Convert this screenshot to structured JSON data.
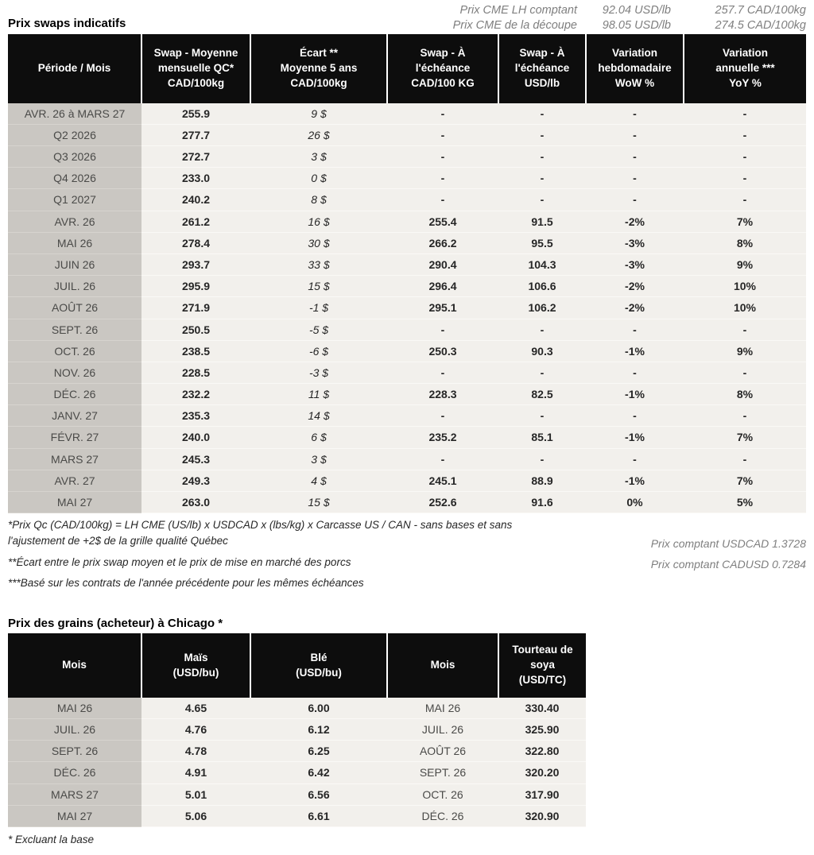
{
  "colors": {
    "positive_green": "#1c7a1c",
    "negative_red": "#9e1b1b",
    "header_bg": "#0d0d0d",
    "month_column_bg": "#cac7c2",
    "data_cell_bg": "#f2f0ec"
  },
  "header": {
    "title": "Prix swaps indicatifs",
    "cme_lines": [
      {
        "label": "Prix CME LH comptant",
        "usd": "92.04 USD/lb",
        "cad": "257.7 CAD/100kg"
      },
      {
        "label": "Prix CME de la découpe",
        "usd": "98.05 USD/lb",
        "cad": "274.5 CAD/100kg"
      }
    ]
  },
  "swaps_table": {
    "columns": [
      "Période / Mois",
      "Swap - Moyenne\nmensuelle QC*\nCAD/100kg",
      "Écart **\nMoyenne 5 ans\nCAD/100kg",
      "Swap - À\nl'échéance\nCAD/100 KG",
      "Swap - À\nl'échéance\nUSD/lb",
      "Variation\nhebdomadaire\nWoW %",
      "Variation\nannuelle ***\nYoY %"
    ],
    "rows": [
      {
        "period": "AVR. 26 à MARS 27",
        "avg": "255.9",
        "ecart": "9 $",
        "ecart_color": "green",
        "swap_cad": "-",
        "swap_usd": "-",
        "wow": "-",
        "yoy": "-"
      },
      {
        "period": "Q2 2026",
        "avg": "277.7",
        "ecart": "26 $",
        "ecart_color": "green",
        "swap_cad": "-",
        "swap_usd": "-",
        "wow": "-",
        "yoy": "-"
      },
      {
        "period": "Q3 2026",
        "avg": "272.7",
        "ecart": "3 $",
        "ecart_color": "green",
        "swap_cad": "-",
        "swap_usd": "-",
        "wow": "-",
        "yoy": "-"
      },
      {
        "period": "Q4 2026",
        "avg": "233.0",
        "ecart": "0 $",
        "ecart_color": "green",
        "swap_cad": "-",
        "swap_usd": "-",
        "wow": "-",
        "yoy": "-"
      },
      {
        "period": "Q1 2027",
        "avg": "240.2",
        "ecart": "8 $",
        "ecart_color": "green",
        "swap_cad": "-",
        "swap_usd": "-",
        "wow": "-",
        "yoy": "-"
      },
      {
        "period": "AVR. 26",
        "avg": "261.2",
        "ecart": "16 $",
        "ecart_color": "green",
        "swap_cad": "255.4",
        "swap_usd": "91.5",
        "wow": "-2%",
        "yoy": "7%"
      },
      {
        "period": "MAI 26",
        "avg": "278.4",
        "ecart": "30 $",
        "ecart_color": "green",
        "swap_cad": "266.2",
        "swap_usd": "95.5",
        "wow": "-3%",
        "yoy": "8%"
      },
      {
        "period": "JUIN 26",
        "avg": "293.7",
        "ecart": "33 $",
        "ecart_color": "green",
        "swap_cad": "290.4",
        "swap_usd": "104.3",
        "wow": "-3%",
        "yoy": "9%"
      },
      {
        "period": "JUIL. 26",
        "avg": "295.9",
        "ecart": "15 $",
        "ecart_color": "green",
        "swap_cad": "296.4",
        "swap_usd": "106.6",
        "wow": "-2%",
        "yoy": "10%"
      },
      {
        "period": "AOÛT 26",
        "avg": "271.9",
        "ecart": "-1 $",
        "ecart_color": "red",
        "swap_cad": "295.1",
        "swap_usd": "106.2",
        "wow": "-2%",
        "yoy": "10%"
      },
      {
        "period": "SEPT. 26",
        "avg": "250.5",
        "ecart": "-5 $",
        "ecart_color": "red",
        "swap_cad": "-",
        "swap_usd": "-",
        "wow": "-",
        "yoy": "-"
      },
      {
        "period": "OCT. 26",
        "avg": "238.5",
        "ecart": "-6 $",
        "ecart_color": "red",
        "swap_cad": "250.3",
        "swap_usd": "90.3",
        "wow": "-1%",
        "yoy": "9%"
      },
      {
        "period": "NOV. 26",
        "avg": "228.5",
        "ecart": "-3 $",
        "ecart_color": "red",
        "swap_cad": "-",
        "swap_usd": "-",
        "wow": "-",
        "yoy": "-"
      },
      {
        "period": "DÉC. 26",
        "avg": "232.2",
        "ecart": "11 $",
        "ecart_color": "green",
        "swap_cad": "228.3",
        "swap_usd": "82.5",
        "wow": "-1%",
        "yoy": "8%"
      },
      {
        "period": "JANV. 27",
        "avg": "235.3",
        "ecart": "14 $",
        "ecart_color": "green",
        "swap_cad": "-",
        "swap_usd": "-",
        "wow": "-",
        "yoy": "-"
      },
      {
        "period": "FÉVR. 27",
        "avg": "240.0",
        "ecart": "6 $",
        "ecart_color": "green",
        "swap_cad": "235.2",
        "swap_usd": "85.1",
        "wow": "-1%",
        "yoy": "7%"
      },
      {
        "period": "MARS 27",
        "avg": "245.3",
        "ecart": "3 $",
        "ecart_color": "green",
        "swap_cad": "-",
        "swap_usd": "-",
        "wow": "-",
        "yoy": "-"
      },
      {
        "period": "AVR. 27",
        "avg": "249.3",
        "ecart": "4 $",
        "ecart_color": "green",
        "swap_cad": "245.1",
        "swap_usd": "88.9",
        "wow": "-1%",
        "yoy": "7%"
      },
      {
        "period": "MAI 27",
        "avg": "263.0",
        "ecart": "15 $",
        "ecart_color": "green",
        "swap_cad": "252.6",
        "swap_usd": "91.6",
        "wow": "0%",
        "yoy": "5%"
      }
    ]
  },
  "footnotes": {
    "note1": "*Prix Qc (CAD/100kg) = LH CME (US/lb) x USDCAD x (lbs/kg) x Carcasse US / CAN - sans bases et sans l'ajustement de +2$ de la grille qualité Québec",
    "usdcad": "Prix comptant USDCAD 1.3728",
    "note2": "**Écart entre le prix swap moyen et le prix de mise en marché des porcs",
    "cadusd": "Prix comptant CADUSD 0.7284",
    "note3": "***Basé sur les contrats de l'année précédente pour les mêmes échéances"
  },
  "grains_table": {
    "title": "Prix des grains (acheteur) à Chicago *",
    "columns": [
      "Mois",
      "Maïs\n(USD/bu)",
      "Blé\n(USD/bu)",
      "Mois",
      "Tourteau de\nsoya\n(USD/TC)"
    ],
    "rows": [
      {
        "month": "MAI 26",
        "corn": "4.65",
        "wheat": "6.00",
        "month2": "MAI 26",
        "soy": "330.40"
      },
      {
        "month": "JUIL. 26",
        "corn": "4.76",
        "wheat": "6.12",
        "month2": "JUIL. 26",
        "soy": "325.90"
      },
      {
        "month": "SEPT. 26",
        "corn": "4.78",
        "wheat": "6.25",
        "month2": "AOÛT 26",
        "soy": "322.80"
      },
      {
        "month": "DÉC. 26",
        "corn": "4.91",
        "wheat": "6.42",
        "month2": "SEPT. 26",
        "soy": "320.20"
      },
      {
        "month": "MARS 27",
        "corn": "5.01",
        "wheat": "6.56",
        "month2": "OCT. 26",
        "soy": "317.90"
      },
      {
        "month": "MAI 27",
        "corn": "5.06",
        "wheat": "6.61",
        "month2": "DÉC. 26",
        "soy": "320.90"
      }
    ],
    "footnote": "* Excluant la base"
  }
}
